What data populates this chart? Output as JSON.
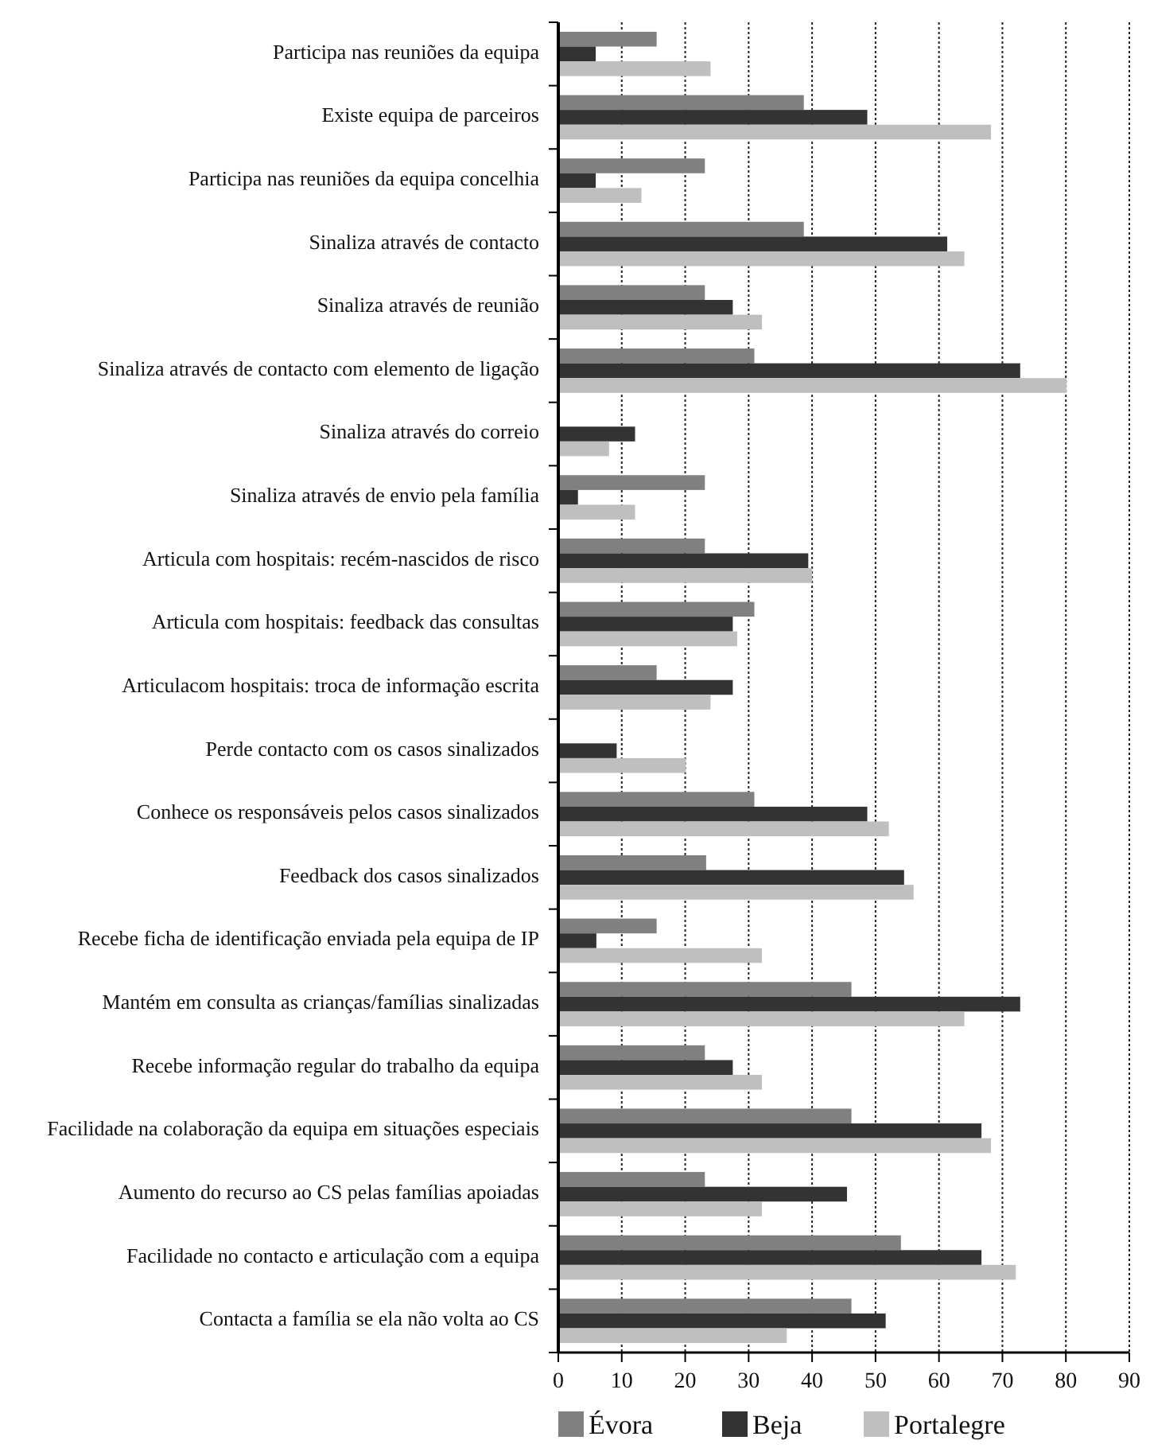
{
  "chart_data": {
    "type": "bar",
    "orientation": "horizontal",
    "categories": [
      "Participa nas reuniões da equipa",
      "Existe equipa de parceiros",
      "Participa nas reuniões da equipa concelhia",
      "Sinaliza através de contacto",
      "Sinaliza através de reunião",
      "Sinaliza através de contacto com elemento de ligação",
      "Sinaliza através do correio",
      "Sinaliza através de envio pela família",
      "Articula com hospitais: recém-nascidos de risco",
      "Articula com hospitais: feedback das consultas",
      "Articulacom hospitais: troca de informação escrita",
      "Perde contacto com os casos sinalizados",
      "Conhece os responsáveis pelos casos sinalizados",
      "Feedback dos casos sinalizados",
      "Recebe ficha de identificação enviada pela equipa de IP",
      "Mantém em consulta as crianças/famílias sinalizadas",
      "Recebe informação regular do trabalho da equipa",
      "Facilidade na colaboração da equipa em situações especiais",
      "Aumento do recurso ao CS pelas famílias apoiadas",
      "Facilidade no contacto e articulação com a equipa",
      "Contacta a família se ela não volta ao CS"
    ],
    "series": [
      {
        "name": "Évora",
        "color": "#808080",
        "values": [
          15.5,
          38.7,
          23.1,
          38.7,
          23.1,
          30.9,
          0,
          23.1,
          23.1,
          30.9,
          15.5,
          0,
          30.9,
          23.3,
          15.5,
          46.2,
          23.1,
          46.2,
          23.1,
          54.0,
          46.2
        ]
      },
      {
        "name": "Beja",
        "color": "#333333",
        "values": [
          5.9,
          48.7,
          5.9,
          61.3,
          27.5,
          72.8,
          12.1,
          3.1,
          39.4,
          27.5,
          27.5,
          9.2,
          48.7,
          54.5,
          6.0,
          72.8,
          27.5,
          66.7,
          45.5,
          66.7,
          51.6
        ]
      },
      {
        "name": "Portalegre",
        "color": "#bfbfbf",
        "values": [
          24.0,
          68.2,
          13.1,
          64.0,
          32.1,
          80.1,
          8.0,
          12.1,
          40.0,
          28.2,
          24.0,
          20.1,
          52.1,
          56.0,
          32.1,
          64.0,
          32.1,
          68.2,
          32.1,
          72.1,
          36.0
        ]
      }
    ],
    "xlim": [
      0,
      90
    ],
    "xticks": [
      0,
      10,
      20,
      30,
      40,
      50,
      60,
      70,
      80,
      90
    ],
    "grid": "x",
    "legend": "bottom"
  }
}
